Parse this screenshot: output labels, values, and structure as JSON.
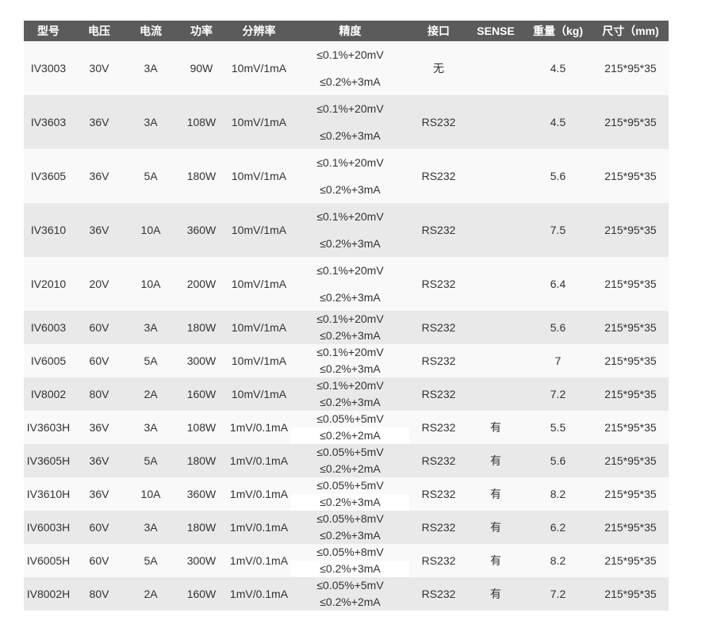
{
  "headers": [
    "型号",
    "电压",
    "电流",
    "功率",
    "分辨率",
    "精度",
    "接口",
    "SENSE",
    "重量（kg)",
    "尺寸（mm)"
  ],
  "rows": [
    {
      "model": "IV3003",
      "voltage": "30V",
      "current": "3A",
      "power": "90W",
      "resolution": "10mV/1mA",
      "accuracy": [
        "≤0.1%+20mV",
        "≤0.2%+3mA"
      ],
      "interface": "无",
      "sense": "",
      "weight": "4.5",
      "size": "215*95*35"
    },
    {
      "model": "IV3603",
      "voltage": "36V",
      "current": "3A",
      "power": "108W",
      "resolution": "10mV/1mA",
      "accuracy": [
        "≤0.1%+20mV",
        "≤0.2%+3mA"
      ],
      "interface": "RS232",
      "sense": "",
      "weight": "4.5",
      "size": "215*95*35"
    },
    {
      "model": "IV3605",
      "voltage": "36V",
      "current": "5A",
      "power": "180W",
      "resolution": "10mV/1mA",
      "accuracy": [
        "≤0.1%+20mV",
        "≤0.2%+3mA"
      ],
      "interface": "RS232",
      "sense": "",
      "weight": "5.6",
      "size": "215*95*35"
    },
    {
      "model": "IV3610",
      "voltage": "36V",
      "current": "10A",
      "power": "360W",
      "resolution": "10mV/1mA",
      "accuracy": [
        "≤0.1%+20mV",
        "≤0.2%+3mA"
      ],
      "interface": "RS232",
      "sense": "",
      "weight": "7.5",
      "size": "215*95*35"
    },
    {
      "model": "IV2010",
      "voltage": "20V",
      "current": "10A",
      "power": "200W",
      "resolution": "10mV/1mA",
      "accuracy": [
        "≤0.1%+20mV",
        "≤0.2%+3mA"
      ],
      "interface": "RS232",
      "sense": "",
      "weight": "6.4",
      "size": "215*95*35"
    },
    {
      "model": "IV6003",
      "voltage": "60V",
      "current": "3A",
      "power": "180W",
      "resolution": "10mV/1mA",
      "accuracy": [
        "≤0.1%+20mV",
        "≤0.2%+3mA"
      ],
      "interface": "RS232",
      "sense": "",
      "weight": "5.6",
      "size": "215*95*35"
    },
    {
      "model": "IV6005",
      "voltage": "60V",
      "current": "5A",
      "power": "300W",
      "resolution": "10mV/1mA",
      "accuracy": [
        "≤0.1%+20mV",
        "≤0.2%+3mA"
      ],
      "interface": "RS232",
      "sense": "",
      "weight": "7",
      "size": "215*95*35"
    },
    {
      "model": "IV8002",
      "voltage": "80V",
      "current": "2A",
      "power": "160W",
      "resolution": "10mV/1mA",
      "accuracy": [
        "≤0.1%+20mV",
        "≤0.2%+3mA"
      ],
      "interface": "RS232",
      "sense": "",
      "weight": "7.2",
      "size": "215*95*35"
    },
    {
      "model": "IV3603H",
      "voltage": "36V",
      "current": "3A",
      "power": "108W",
      "resolution": "1mV/0.1mA",
      "accuracy": [
        "≤0.05%+5mV",
        "≤0.2%+2mA"
      ],
      "interface": "RS232",
      "sense": "有",
      "weight": "5.5",
      "size": "215*95*35"
    },
    {
      "model": "IV3605H",
      "voltage": "36V",
      "current": "5A",
      "power": "180W",
      "resolution": "1mV/0.1mA",
      "accuracy": [
        "≤0.05%+5mV",
        "≤0.2%+2mA"
      ],
      "interface": "RS232",
      "sense": "有",
      "weight": "5.6",
      "size": "215*95*35"
    },
    {
      "model": "IV3610H",
      "voltage": "36V",
      "current": "10A",
      "power": "360W",
      "resolution": "1mV/0.1mA",
      "accuracy": [
        "≤0.05%+5mV",
        "≤0.2%+3mA"
      ],
      "interface": "RS232",
      "sense": "有",
      "weight": "8.2",
      "size": "215*95*35"
    },
    {
      "model": "IV6003H",
      "voltage": "60V",
      "current": "3A",
      "power": "180W",
      "resolution": "1mV/0.1mA",
      "accuracy": [
        "≤0.05%+8mV",
        "≤0.2%+3mA"
      ],
      "interface": "RS232",
      "sense": "有",
      "weight": "6.2",
      "size": "215*95*35"
    },
    {
      "model": "IV6005H",
      "voltage": "60V",
      "current": "5A",
      "power": "300W",
      "resolution": "1mV/0.1mA",
      "accuracy": [
        "≤0.05%+8mV",
        "≤0.2%+3mA"
      ],
      "interface": "RS232",
      "sense": "有",
      "weight": "8.2",
      "size": "215*95*35"
    },
    {
      "model": "IV8002H",
      "voltage": "80V",
      "current": "2A",
      "power": "160W",
      "resolution": "1mV/0.1mA",
      "accuracy": [
        "≤0.05%+5mV",
        "≤0.2%+2mA"
      ],
      "interface": "RS232",
      "sense": "有",
      "weight": "7.2",
      "size": "215*95*35"
    }
  ]
}
